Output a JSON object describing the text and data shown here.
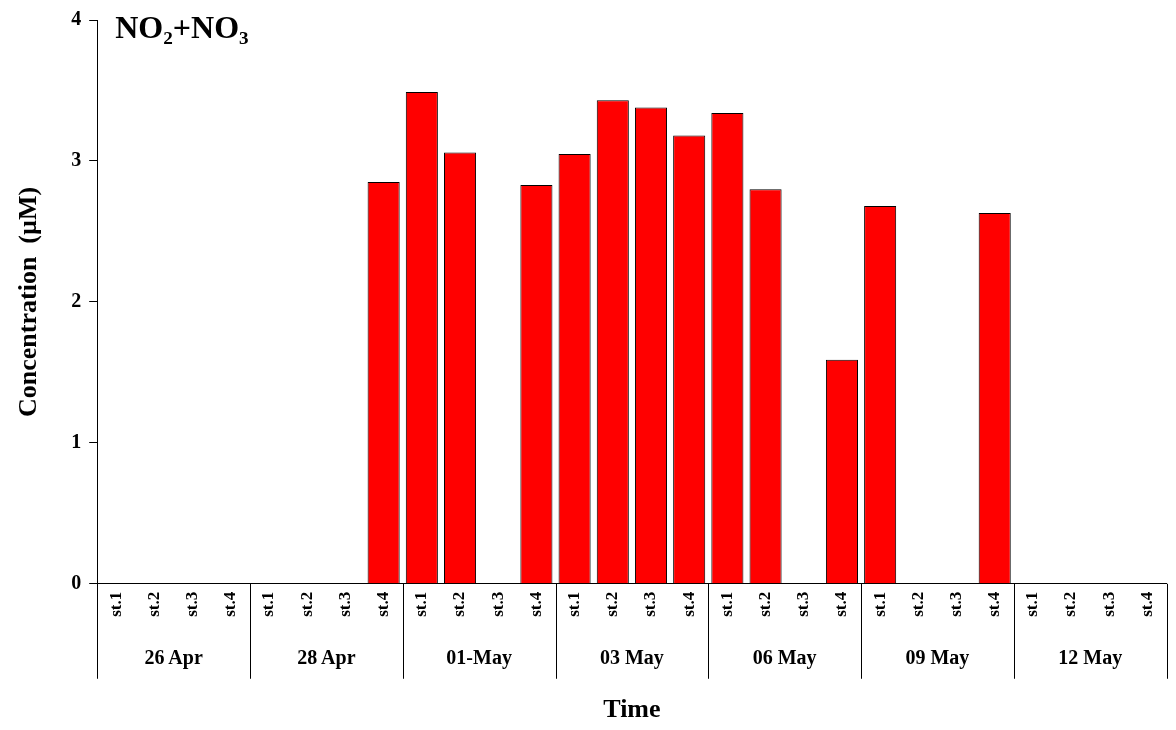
{
  "chart_data": {
    "type": "bar",
    "title": "NO₂+NO₃",
    "xlabel": "Time",
    "ylabel": "Concentration  (µM)",
    "categories": [
      "st.1",
      "st.2",
      "st.3",
      "st.4",
      "st.1",
      "st.2",
      "st.3",
      "st.4",
      "st.1",
      "st.2",
      "st.3",
      "st.4",
      "st.1",
      "st.2",
      "st.3",
      "st.4",
      "st.1",
      "st.2",
      "st.3",
      "st.4",
      "st.1",
      "st.2",
      "st.3",
      "st.4",
      "st.1",
      "st.2",
      "st.3",
      "st.4"
    ],
    "values": [
      null,
      null,
      null,
      null,
      null,
      null,
      null,
      2.85,
      3.49,
      3.06,
      null,
      2.83,
      3.05,
      3.43,
      3.38,
      3.18,
      3.34,
      2.8,
      null,
      1.59,
      2.68,
      null,
      null,
      2.63,
      null,
      null,
      null,
      null
    ],
    "color": "#ff0000",
    "ylim": [
      0,
      4
    ],
    "yticks": [
      0,
      1,
      2,
      3,
      4
    ],
    "grid": false,
    "legend": false,
    "annotations": [
      "26 Apr",
      "28 Apr",
      "01-May",
      "03 May",
      "06 May",
      "09 May",
      "12 May"
    ]
  }
}
